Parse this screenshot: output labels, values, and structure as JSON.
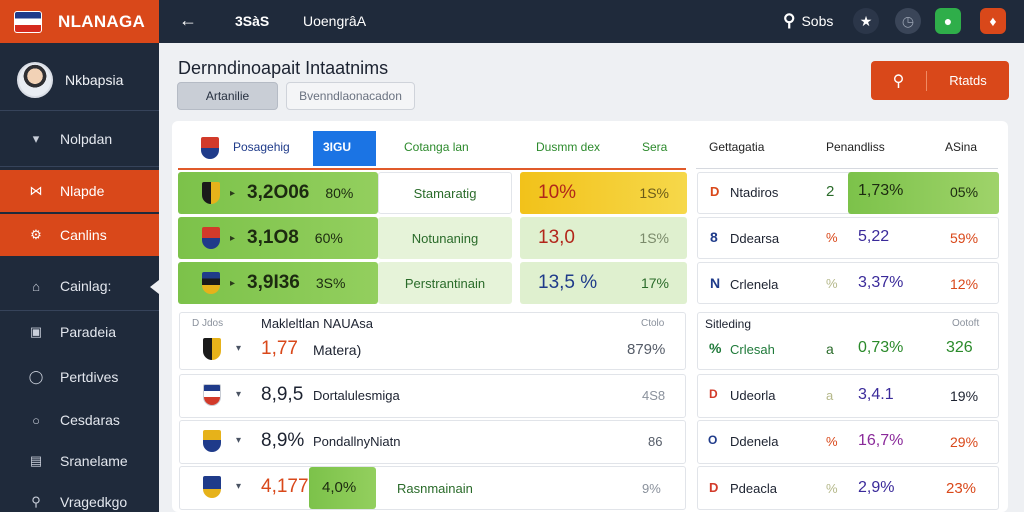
{
  "brand": {
    "title": "NLANAGA"
  },
  "profile": {
    "name": "Nkbapsia"
  },
  "nav": [
    {
      "label": "Nolpdan",
      "icon": "basket-icon"
    },
    {
      "label": "Nlapde",
      "icon": "butterfly-icon"
    },
    {
      "label": "Canlins",
      "icon": "gear-icon"
    },
    {
      "label": "Cainlag:",
      "icon": "home-icon"
    },
    {
      "label": "Paradeia",
      "icon": "square-icon"
    },
    {
      "label": "Pertdives",
      "icon": "shield-icon"
    },
    {
      "label": "Cesdaras",
      "icon": "circle-icon"
    },
    {
      "label": "Sranelame",
      "icon": "chart-icon"
    },
    {
      "label": "Vragedkgo",
      "icon": "search-icon"
    }
  ],
  "topbar": {
    "number": "3SàS",
    "title": "UoengrâA",
    "search_label": "Sobs"
  },
  "header": {
    "title": "Dernndinoapait Intaatnims",
    "tab_active": "Artanilie",
    "tab_inactive": "Bvenndlaonacadon",
    "action_label": "Rtatds"
  },
  "table": {
    "headers": [
      "Posagehig",
      "3IGU",
      "Cotanga lan",
      "Dusmm dex",
      "Sera",
      "Gettagatia",
      "Penandliss",
      "ASina"
    ],
    "top_rows": [
      {
        "value": "3,2O06",
        "pct": "80%",
        "label": "Stamaratig",
        "stat": "10%",
        "stat2": "1S%"
      },
      {
        "value": "3,1O8",
        "pct": "60%",
        "label": "Notunaning",
        "stat": "13,0",
        "stat2": "1S%"
      },
      {
        "value": "3,9I36",
        "pct": "3S%",
        "label": "Perstrantinain",
        "stat": "13,5 %",
        "stat2": "17%"
      }
    ],
    "right_top_rows": [
      {
        "letter": "D",
        "name": "Ntadiros",
        "mark": "2",
        "value": "1,73%",
        "pct": "05%"
      },
      {
        "letter": "8",
        "name": "Ddearsa",
        "mark": "%",
        "value": "5,22",
        "pct": "59%"
      },
      {
        "letter": "N",
        "name": "Crlenela",
        "mark": "%",
        "value": "3,37%",
        "pct": "12%"
      }
    ],
    "section_left": {
      "small_left": "D Jdos",
      "title": "Makleltlan NAUAsa",
      "small_right": "Ctolo"
    },
    "section_right": {
      "title": "Sitleding",
      "small_right": "Ootoft"
    },
    "bottom_rows": [
      {
        "value": "1,77",
        "name": "Matera)",
        "right": "879%"
      },
      {
        "value": "8,9,5",
        "name": "Dortalulesmiga",
        "right": "4S8"
      },
      {
        "value": "8,9%",
        "name": "PondallnyNiatn",
        "right": "86"
      },
      {
        "value": "4,177",
        "chip": "4,0%",
        "name": "Rasnmainain",
        "right": "9%"
      }
    ],
    "right_bottom_rows": [
      {
        "letter": "%",
        "name": "Crlesah",
        "mark": "a",
        "value": "0,73%",
        "pct": "326"
      },
      {
        "letter": "D",
        "name": "Udeorla",
        "mark": "a",
        "value": "3,4.1",
        "pct": "19%"
      },
      {
        "letter": "O",
        "name": "Ddenela",
        "mark": "%",
        "value": "16,7%",
        "pct": "29%"
      },
      {
        "letter": "D",
        "name": "Pdeacla",
        "mark": "%",
        "value": "2,9%",
        "pct": "23%"
      }
    ]
  }
}
